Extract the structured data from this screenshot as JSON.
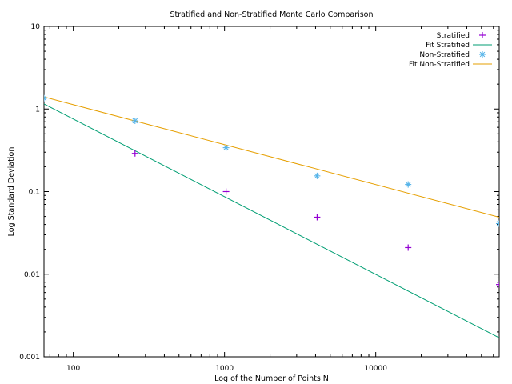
{
  "chart_data": {
    "type": "scatter",
    "title": "Stratified and Non-Stratified Monte Carlo Comparison",
    "xlabel": "Log of the Number of Points N",
    "ylabel": "Log Standard Deviation",
    "xscale": "log",
    "yscale": "log",
    "xlim": [
      64,
      65536
    ],
    "ylim": [
      0.001,
      10
    ],
    "x_ticks": [
      {
        "value": 100,
        "label": "100"
      },
      {
        "value": 1000,
        "label": "1000"
      },
      {
        "value": 10000,
        "label": "10000"
      }
    ],
    "y_ticks": [
      {
        "value": 0.001,
        "label": "0.001"
      },
      {
        "value": 0.01,
        "label": "0.01"
      },
      {
        "value": 0.1,
        "label": "0.1"
      },
      {
        "value": 1,
        "label": "1"
      },
      {
        "value": 10,
        "label": "10"
      }
    ],
    "grid": false,
    "legend_position": "top-right",
    "series": [
      {
        "name": "Stratified",
        "kind": "points",
        "marker": "plus",
        "color": "#9400d3",
        "points": [
          {
            "x": 256,
            "y": 0.29
          },
          {
            "x": 1024,
            "y": 0.1
          },
          {
            "x": 4096,
            "y": 0.049
          },
          {
            "x": 16384,
            "y": 0.021
          },
          {
            "x": 65536,
            "y": 0.0075
          }
        ]
      },
      {
        "name": "Fit Stratified",
        "kind": "line",
        "color": "#009e73",
        "points": [
          {
            "x": 64,
            "y": 1.15
          },
          {
            "x": 65536,
            "y": 0.0017
          }
        ]
      },
      {
        "name": "Non-Stratified",
        "kind": "points",
        "marker": "star",
        "color": "#56b4e9",
        "points": [
          {
            "x": 64,
            "y": 1.35
          },
          {
            "x": 256,
            "y": 0.72
          },
          {
            "x": 1024,
            "y": 0.34
          },
          {
            "x": 4096,
            "y": 0.155
          },
          {
            "x": 16384,
            "y": 0.122
          },
          {
            "x": 65536,
            "y": 0.041
          }
        ]
      },
      {
        "name": "Fit Non-Stratified",
        "kind": "line",
        "color": "#e69f00",
        "points": [
          {
            "x": 64,
            "y": 1.4
          },
          {
            "x": 65536,
            "y": 0.049
          }
        ]
      }
    ]
  }
}
